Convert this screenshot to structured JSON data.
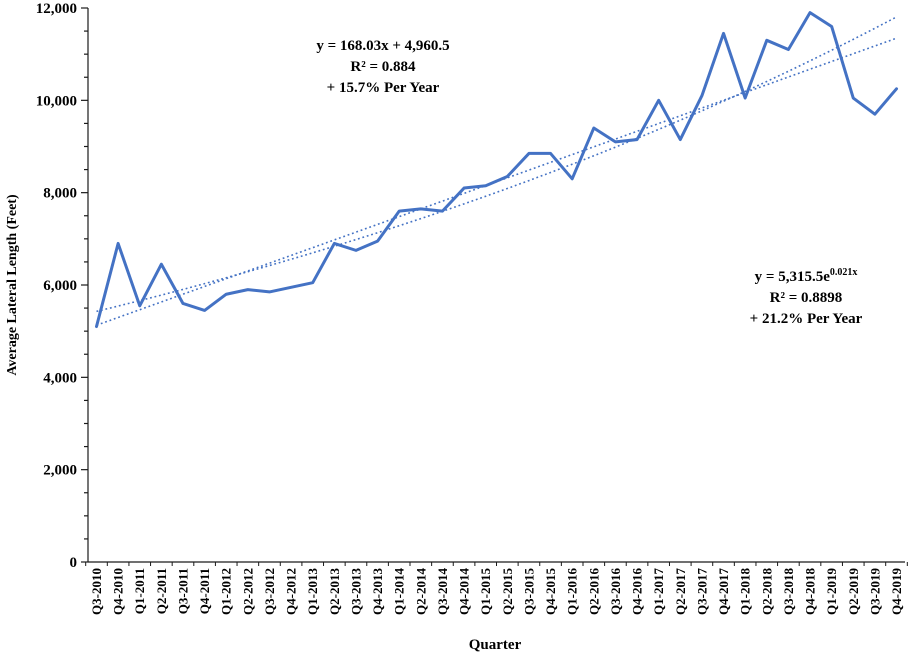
{
  "chart_data": {
    "type": "line",
    "title": "",
    "xlabel": "Quarter",
    "ylabel": "Average Lateral Length (Feet)",
    "ylim": [
      0,
      12000
    ],
    "y_major_step": 2000,
    "y_minor_step": 500,
    "y_tick_labels": [
      "0",
      "2,000",
      "4,000",
      "6,000",
      "8,000",
      "10,000",
      "12,000"
    ],
    "grid": false,
    "legend": "none",
    "categories": [
      "Q3-2010",
      "Q4-2010",
      "Q1-2011",
      "Q2-2011",
      "Q3-2011",
      "Q4-2011",
      "Q1-2012",
      "Q2-2012",
      "Q3-2012",
      "Q4-2012",
      "Q1-2013",
      "Q2-2013",
      "Q3-2013",
      "Q4-2013",
      "Q1-2014",
      "Q2-2014",
      "Q3-2014",
      "Q4-2014",
      "Q1-2015",
      "Q2-2015",
      "Q3-2015",
      "Q4-2015",
      "Q1-2016",
      "Q2-2016",
      "Q3-2016",
      "Q4-2016",
      "Q1-2017",
      "Q2-2017",
      "Q3-2017",
      "Q4-2017",
      "Q1-2018",
      "Q2-2018",
      "Q3-2018",
      "Q4-2018",
      "Q1-2019",
      "Q2-2019",
      "Q3-2019",
      "Q4-2019"
    ],
    "series": [
      {
        "name": "Average Lateral Length",
        "values": [
          5100,
          6900,
          5550,
          6450,
          5600,
          5450,
          5800,
          5900,
          5850,
          5950,
          6050,
          6900,
          6750,
          6950,
          7600,
          7650,
          7600,
          8100,
          8150,
          8350,
          8850,
          8850,
          8300,
          9400,
          9100,
          9150,
          10000,
          9150,
          10100,
          11450,
          10050,
          11300,
          11100,
          11900,
          11600,
          10050,
          9700,
          10250
        ]
      }
    ],
    "trendlines": [
      {
        "kind": "linear",
        "slope": 168.03,
        "intercept": 4960.5,
        "equation": "y = 168.03x + 4,960.5",
        "r_squared": "R² = 0.884",
        "growth_note": "+ 15.7% Per Year"
      },
      {
        "kind": "exponential",
        "coef": 5315.5,
        "rate": 0.021,
        "equation": "y = 5,315.5e^0.021x",
        "r_squared": "R² = 0.8898",
        "growth_note": "+ 21.2% Per Year"
      }
    ],
    "colors": {
      "series": "#4472C4",
      "trendline": "#4472C4",
      "axis": "#1a1a1a",
      "text": "#000000",
      "background": "#ffffff"
    }
  },
  "annotations": {
    "linear": {
      "line1": "y = 168.03x + 4,960.5",
      "line2": "R² = 0.884",
      "line3": "+ 15.7% Per Year"
    },
    "exp": {
      "line1_base": "y = 5,315.5e",
      "line1_sup": "0.021x",
      "line2": "R² = 0.8898",
      "line3": "+ 21.2% Per Year"
    }
  }
}
